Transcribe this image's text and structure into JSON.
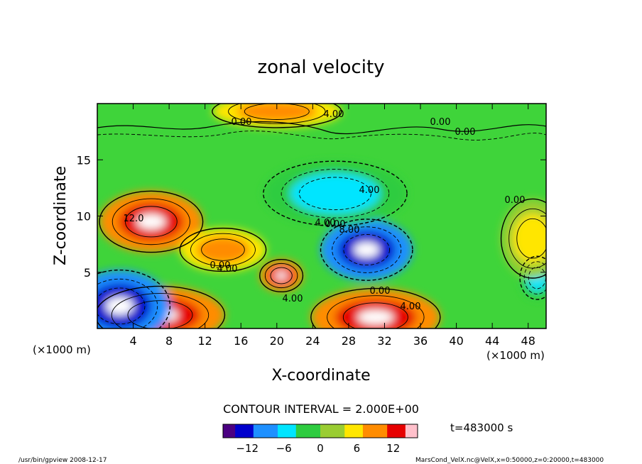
{
  "chart_data": {
    "type": "heatmap",
    "title": "zonal velocity",
    "xlabel": "X-coordinate",
    "ylabel": "Z-coordinate",
    "x_unit_label": "(×1000 m)",
    "y_unit_label": "(×1000 m)",
    "xlim": [
      0,
      50
    ],
    "ylim": [
      0,
      20
    ],
    "x_ticks": [
      "4",
      "8",
      "12",
      "16",
      "20",
      "24",
      "28",
      "32",
      "36",
      "40",
      "44",
      "48"
    ],
    "y_ticks": [
      "5",
      "10",
      "15"
    ],
    "contour_interval_text": "CONTOUR INTERVAL = 2.000E+00",
    "time_text": "t=483000 s",
    "colorbar": {
      "range": [
        -16,
        16
      ],
      "ticks": [
        "−12",
        "−6",
        "0",
        "6",
        "12"
      ],
      "colors": [
        "#4b0082",
        "#0000cd",
        "#1e90ff",
        "#00e5ff",
        "#2ecc40",
        "#9acd32",
        "#ffe600",
        "#ff8c00",
        "#e60000",
        "#ffc0cb"
      ]
    },
    "contour_labels": [
      "4.00",
      "0.00",
      "0.00",
      "0.00",
      "0.00",
      "4.00",
      "12.0",
      "4.00",
      "0.00",
      "8.00",
      "0.00",
      "4.00",
      "0.00",
      "4.00",
      "4.00"
    ],
    "features": [
      {
        "x": 6,
        "z": 9.5,
        "value": 14
      },
      {
        "x": 30,
        "z": 7,
        "value": -14
      },
      {
        "x": 7,
        "z": 1.2,
        "value": 14
      },
      {
        "x": 31,
        "z": 1,
        "value": 14
      },
      {
        "x": 14,
        "z": 7,
        "value": 10
      },
      {
        "x": 20.5,
        "z": 4.7,
        "value": 14
      },
      {
        "x": 20,
        "z": 19.3,
        "value": 10
      },
      {
        "x": 2.5,
        "z": 2,
        "value": -13
      },
      {
        "x": 26.5,
        "z": 12,
        "value": -6
      },
      {
        "x": 49,
        "z": 4.5,
        "value": -7
      },
      {
        "x": 48.5,
        "z": 8,
        "value": 6
      }
    ]
  },
  "footer": {
    "left": "/usr/bin/gpview   2008-12-17",
    "right": "MarsCond_VelX.nc@VelX,x=0:50000,z=0:20000,t=483000"
  }
}
